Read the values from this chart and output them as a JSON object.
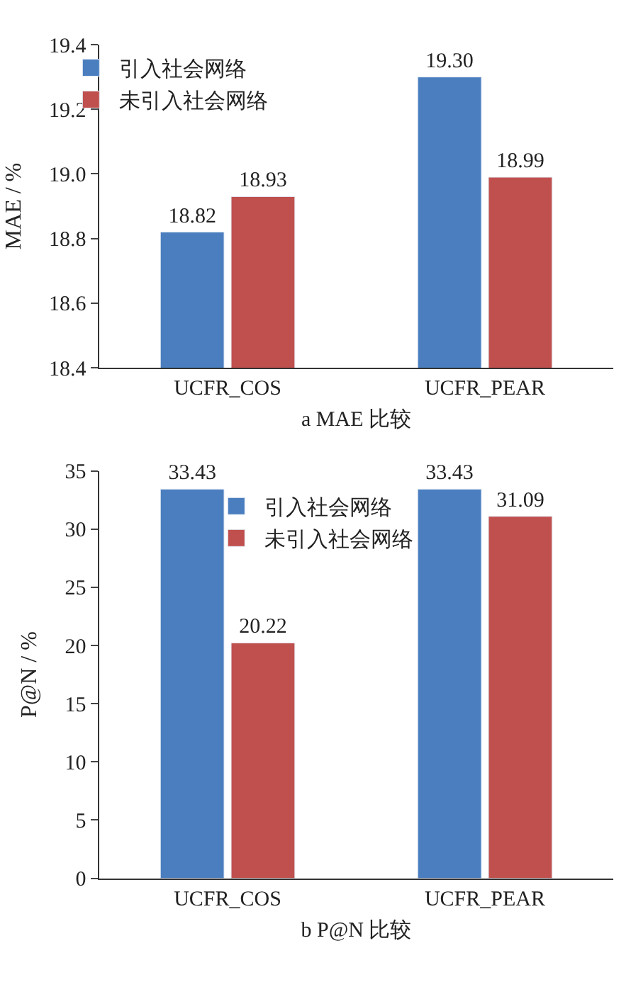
{
  "chart_data": [
    {
      "type": "bar",
      "xlabel": "a MAE 比较",
      "ylabel": "MAE / %",
      "categories": [
        "UCFR_COS",
        "UCFR_PEAR"
      ],
      "series": [
        {
          "name": "引入社会网络",
          "color": "#4a7ebf",
          "values": [
            18.82,
            19.3
          ],
          "value_labels": [
            "18.82",
            "19.30"
          ]
        },
        {
          "name": "未引入社会网络",
          "color": "#c0504d",
          "values": [
            18.93,
            18.99
          ],
          "value_labels": [
            "18.93",
            "18.99"
          ]
        }
      ],
      "ylim": [
        18.4,
        19.4
      ],
      "yticks": [
        18.4,
        18.6,
        18.8,
        {
          "value": 19,
          "label": "19.0"
        },
        19.2,
        19.4
      ],
      "legend": "top left"
    },
    {
      "type": "bar",
      "xlabel": "b P@N 比较",
      "ylabel": "P@N / %",
      "categories": [
        "UCFR_COS",
        "UCFR_PEAR"
      ],
      "series": [
        {
          "name": "引入社会网络",
          "color": "#4a7ebf",
          "values": [
            33.43,
            33.43
          ],
          "value_labels": [
            "33.43",
            "33.43"
          ]
        },
        {
          "name": "未引入社会网络",
          "color": "#c0504d",
          "values": [
            20.22,
            31.09
          ],
          "value_labels": [
            "20.22",
            "31.09"
          ]
        }
      ],
      "ylim": [
        0,
        35
      ],
      "yticks": [
        0,
        5,
        10,
        15,
        20,
        25,
        30,
        35
      ],
      "legend": "top"
    }
  ]
}
